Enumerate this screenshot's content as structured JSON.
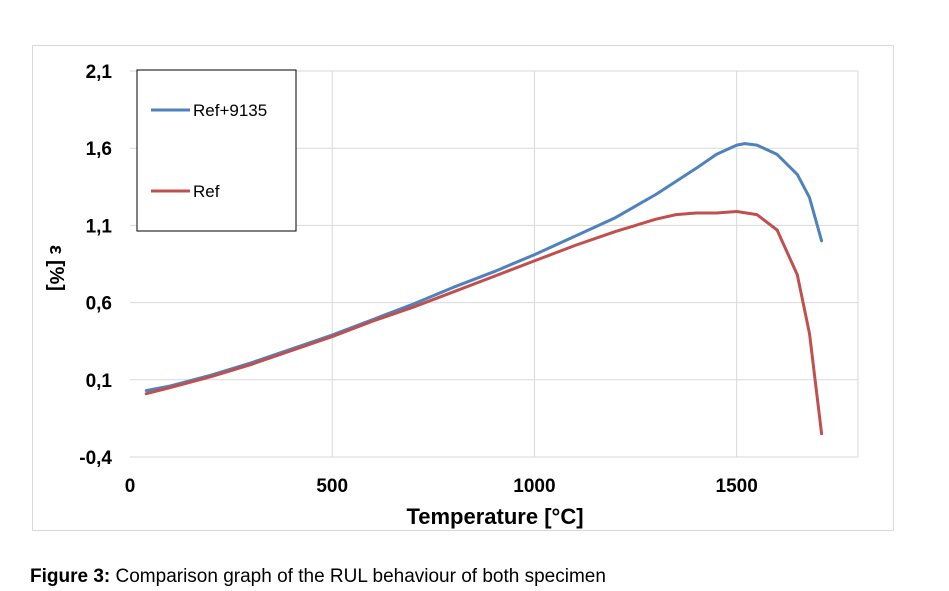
{
  "chart_data": {
    "type": "line",
    "xlabel": "Temperature [°C]",
    "ylabel": "ε [%]",
    "xlim": [
      0,
      1800
    ],
    "ylim": [
      -0.4,
      2.1
    ],
    "x_ticks": [
      0,
      500,
      1000,
      1500
    ],
    "y_ticks": [
      -0.4,
      0.1,
      0.6,
      1.1,
      1.6,
      2.1
    ],
    "x_tick_labels": [
      "0",
      "500",
      "1000",
      "1500"
    ],
    "y_tick_labels": [
      "-0,4",
      "0,1",
      "0,6",
      "1,1",
      "1,6",
      "2,1"
    ],
    "grid": true,
    "legend_position": "top-left",
    "series": [
      {
        "name": "Ref+9135",
        "color": "#4f81bd",
        "points": [
          [
            40,
            0.03
          ],
          [
            100,
            0.06
          ],
          [
            200,
            0.13
          ],
          [
            300,
            0.21
          ],
          [
            400,
            0.3
          ],
          [
            500,
            0.39
          ],
          [
            600,
            0.49
          ],
          [
            700,
            0.59
          ],
          [
            800,
            0.7
          ],
          [
            900,
            0.8
          ],
          [
            1000,
            0.91
          ],
          [
            1100,
            1.03
          ],
          [
            1200,
            1.15
          ],
          [
            1300,
            1.3
          ],
          [
            1400,
            1.47
          ],
          [
            1450,
            1.56
          ],
          [
            1500,
            1.62
          ],
          [
            1520,
            1.63
          ],
          [
            1550,
            1.62
          ],
          [
            1600,
            1.56
          ],
          [
            1650,
            1.43
          ],
          [
            1680,
            1.28
          ],
          [
            1710,
            1.0
          ]
        ]
      },
      {
        "name": "Ref",
        "color": "#c0504d",
        "points": [
          [
            40,
            0.01
          ],
          [
            100,
            0.05
          ],
          [
            200,
            0.12
          ],
          [
            300,
            0.2
          ],
          [
            400,
            0.29
          ],
          [
            500,
            0.38
          ],
          [
            600,
            0.48
          ],
          [
            700,
            0.57
          ],
          [
            800,
            0.67
          ],
          [
            900,
            0.77
          ],
          [
            1000,
            0.87
          ],
          [
            1100,
            0.97
          ],
          [
            1200,
            1.06
          ],
          [
            1300,
            1.14
          ],
          [
            1350,
            1.17
          ],
          [
            1400,
            1.18
          ],
          [
            1450,
            1.18
          ],
          [
            1500,
            1.19
          ],
          [
            1550,
            1.17
          ],
          [
            1600,
            1.07
          ],
          [
            1650,
            0.78
          ],
          [
            1680,
            0.4
          ],
          [
            1710,
            -0.25
          ]
        ]
      }
    ]
  },
  "caption": {
    "label": "Figure 3:",
    "text": " Comparison graph of the RUL behaviour of both specimen"
  }
}
